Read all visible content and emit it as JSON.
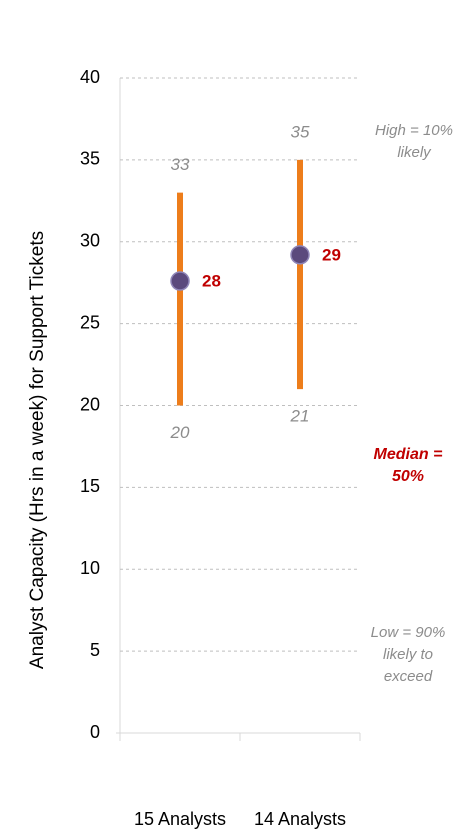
{
  "chart_data": {
    "type": "range",
    "y_axis_label": "Analyst Capacity (Hrs in a week) for Support Tickets",
    "categories": [
      "15 Analysts",
      "14 Analysts"
    ],
    "low": [
      20,
      21
    ],
    "high": [
      33,
      35
    ],
    "median": [
      27.6,
      29.2
    ],
    "median_value_labels": [
      "28",
      "29"
    ],
    "bar_color": "#ed7d1b",
    "marker_color": "#5b4a7d",
    "median_label_color": "#c00000",
    "range_label_color": "#8c8c8c",
    "ylim": [
      0,
      40
    ],
    "yticks": [
      0,
      5,
      10,
      15,
      20,
      25,
      30,
      35,
      40
    ],
    "grid": true,
    "annotations": [
      "High = 10% likely",
      "Median = 50%",
      "Low = 90% likely to exceed"
    ]
  }
}
